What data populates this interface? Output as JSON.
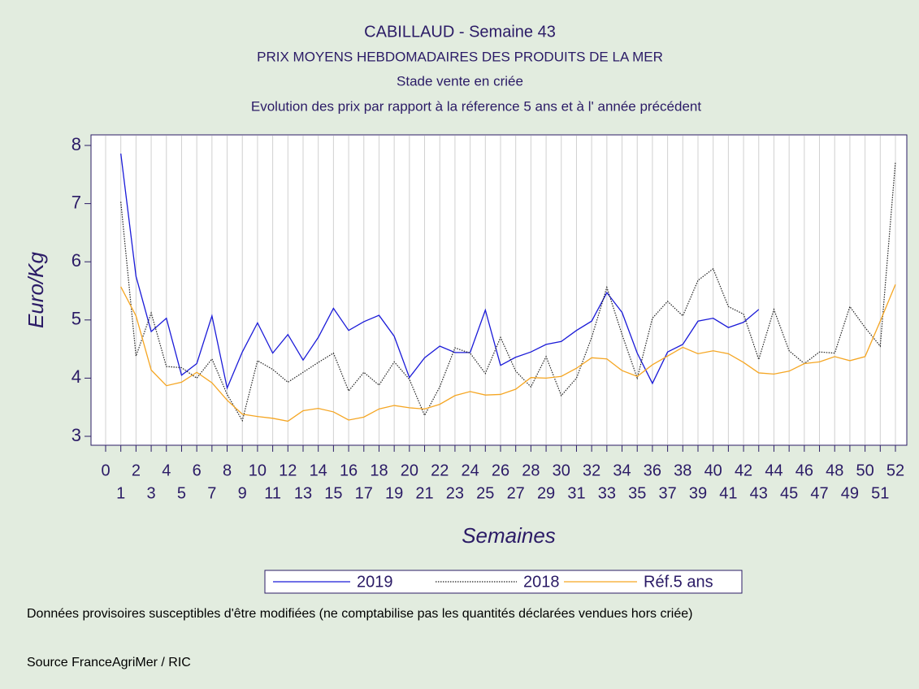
{
  "chart_data": {
    "type": "line",
    "title": "CABILLAUD - Semaine 43",
    "subtitle": [
      "PRIX MOYENS HEBDOMADAIRES DES PRODUITS DE LA MER",
      "Stade vente en criée",
      "Evolution des prix par rapport à la réference 5 ans et à l' année précédent"
    ],
    "xlabel": "Semaines",
    "ylabel": "Euro/Kg",
    "x": [
      1,
      2,
      3,
      4,
      5,
      6,
      7,
      8,
      9,
      10,
      11,
      12,
      13,
      14,
      15,
      16,
      17,
      18,
      19,
      20,
      21,
      22,
      23,
      24,
      25,
      26,
      27,
      28,
      29,
      30,
      31,
      32,
      33,
      34,
      35,
      36,
      37,
      38,
      39,
      40,
      41,
      42,
      43,
      44,
      45,
      46,
      47,
      48,
      49,
      50,
      51,
      52
    ],
    "series": [
      {
        "name": "2019",
        "color": "#1a1ad8",
        "style": "solid",
        "values": [
          7.86,
          5.75,
          4.8,
          5.03,
          4.05,
          4.25,
          5.07,
          3.83,
          4.45,
          4.95,
          4.43,
          4.75,
          4.31,
          4.7,
          5.2,
          4.82,
          4.97,
          5.08,
          4.72,
          4.01,
          4.35,
          4.55,
          4.44,
          4.44,
          5.17,
          4.22,
          4.36,
          4.45,
          4.58,
          4.63,
          4.82,
          4.98,
          5.47,
          5.13,
          4.43,
          3.91,
          4.45,
          4.58,
          4.98,
          5.03,
          4.87,
          4.96,
          5.18,
          null,
          null,
          null,
          null,
          null,
          null,
          null,
          null,
          null
        ]
      },
      {
        "name": "2018",
        "color": "#222222",
        "style": "dotted",
        "values": [
          7.03,
          4.38,
          5.12,
          4.2,
          4.18,
          4.0,
          4.33,
          3.72,
          3.27,
          4.3,
          4.15,
          3.93,
          4.1,
          4.27,
          4.43,
          3.78,
          4.1,
          3.88,
          4.28,
          3.98,
          3.36,
          3.85,
          4.52,
          4.43,
          4.08,
          4.7,
          4.12,
          3.85,
          4.37,
          3.7,
          4.0,
          4.7,
          5.56,
          4.75,
          4.0,
          5.03,
          5.32,
          5.07,
          5.68,
          5.88,
          5.23,
          5.1,
          4.32,
          5.18,
          4.47,
          4.25,
          4.45,
          4.43,
          5.23,
          4.87,
          4.55,
          7.72
        ]
      },
      {
        "name": "Réf.5 ans",
        "color": "#f5a623",
        "style": "solid",
        "values": [
          5.57,
          5.07,
          4.14,
          3.87,
          3.93,
          4.1,
          3.92,
          3.62,
          3.38,
          3.34,
          3.31,
          3.26,
          3.44,
          3.48,
          3.42,
          3.28,
          3.33,
          3.47,
          3.53,
          3.49,
          3.47,
          3.55,
          3.7,
          3.77,
          3.71,
          3.72,
          3.81,
          4.01,
          4.0,
          4.03,
          4.17,
          4.35,
          4.33,
          4.13,
          4.03,
          4.23,
          4.38,
          4.53,
          4.42,
          4.47,
          4.42,
          4.27,
          4.09,
          4.07,
          4.12,
          4.25,
          4.28,
          4.37,
          4.3,
          4.37,
          4.98,
          5.61
        ]
      }
    ],
    "xlim": [
      0,
      52
    ],
    "xticks": [
      0,
      1,
      2,
      3,
      4,
      5,
      6,
      7,
      8,
      9,
      10,
      11,
      12,
      13,
      14,
      15,
      16,
      17,
      18,
      19,
      20,
      21,
      22,
      23,
      24,
      25,
      26,
      27,
      28,
      29,
      30,
      31,
      32,
      33,
      34,
      35,
      36,
      37,
      38,
      39,
      40,
      41,
      42,
      43,
      44,
      45,
      46,
      47,
      48,
      49,
      50,
      51,
      52
    ],
    "ylim": [
      3,
      8
    ],
    "yticks": [
      3,
      4,
      5,
      6,
      7,
      8
    ],
    "grid": "x",
    "legend": "bottom",
    "notes": [
      "Données provisoires susceptibles d'être modifiées (ne comptabilise pas les quantités déclarées vendues hors criée)",
      "Source FranceAgriMer / RIC"
    ]
  }
}
